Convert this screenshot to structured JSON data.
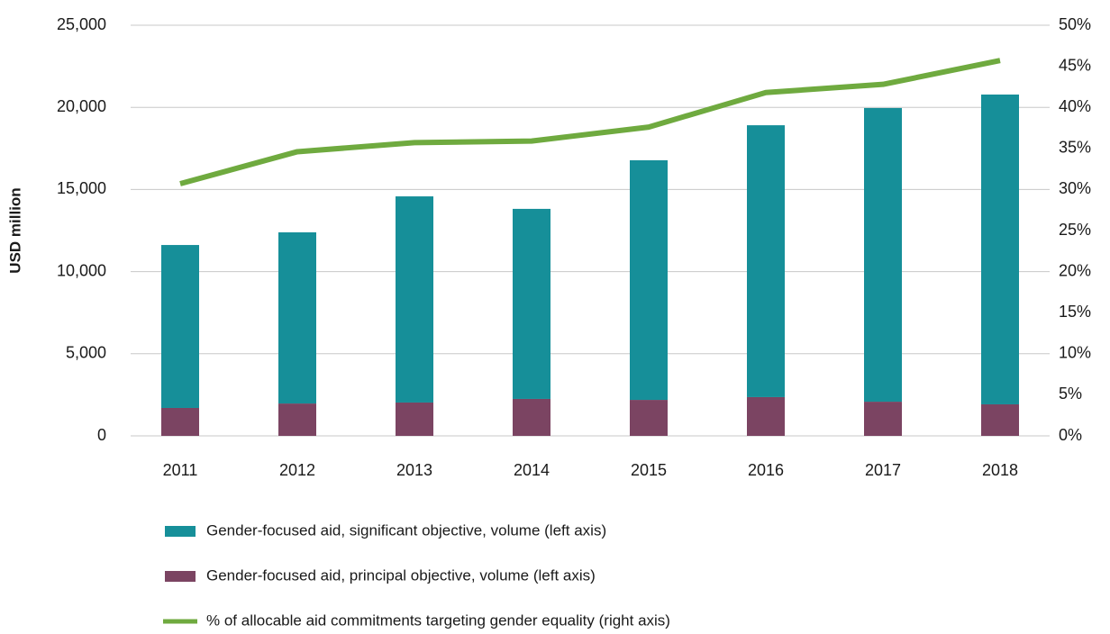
{
  "chart_data": {
    "type": "bar",
    "stacked": true,
    "y_label": "USD million",
    "categories": [
      "2011",
      "2012",
      "2013",
      "2014",
      "2015",
      "2016",
      "2017",
      "2018"
    ],
    "series": [
      {
        "name": "Gender-focused aid, significant objective, volume (left axis)",
        "type": "bar",
        "color": "#168f99",
        "values": [
          9920,
          10420,
          12550,
          11570,
          14590,
          16550,
          17880,
          18860
        ]
      },
      {
        "name": "Gender-focused aid, principal objective, volume (left axis)",
        "type": "bar",
        "color": "#7b4462",
        "values": [
          1700,
          1970,
          2030,
          2250,
          2190,
          2360,
          2080,
          1920
        ]
      },
      {
        "name": "% of allocable aid commitments targeting gender equality (right axis)",
        "type": "line",
        "axis": "y2",
        "color": "#6faa3f",
        "values": [
          30.7,
          34.6,
          35.7,
          35.9,
          37.6,
          41.8,
          42.8,
          45.7
        ]
      }
    ],
    "ylim": [
      0,
      25000
    ],
    "yticks": [
      0,
      {
        "value": 5000,
        "label": "5,000"
      },
      {
        "value": 10000,
        "label": "10,000"
      },
      {
        "value": 15000,
        "label": "15,000"
      },
      {
        "value": 20000,
        "label": "20,000"
      },
      {
        "value": 25000,
        "label": "25,000"
      }
    ],
    "y2lim": [
      0,
      50
    ],
    "y2ticks": [
      {
        "value": 0,
        "label": "0%"
      },
      {
        "value": 5,
        "label": "5%"
      },
      {
        "value": 10,
        "label": "10%"
      },
      {
        "value": 15,
        "label": "15%"
      },
      {
        "value": 20,
        "label": "20%"
      },
      {
        "value": 25,
        "label": "25%"
      },
      {
        "value": 30,
        "label": "30%"
      },
      {
        "value": 35,
        "label": "35%"
      },
      {
        "value": 40,
        "label": "40%"
      },
      {
        "value": 45,
        "label": "45%"
      },
      {
        "value": 50,
        "label": "50%"
      }
    ],
    "grid": true,
    "legend": "bottom"
  }
}
